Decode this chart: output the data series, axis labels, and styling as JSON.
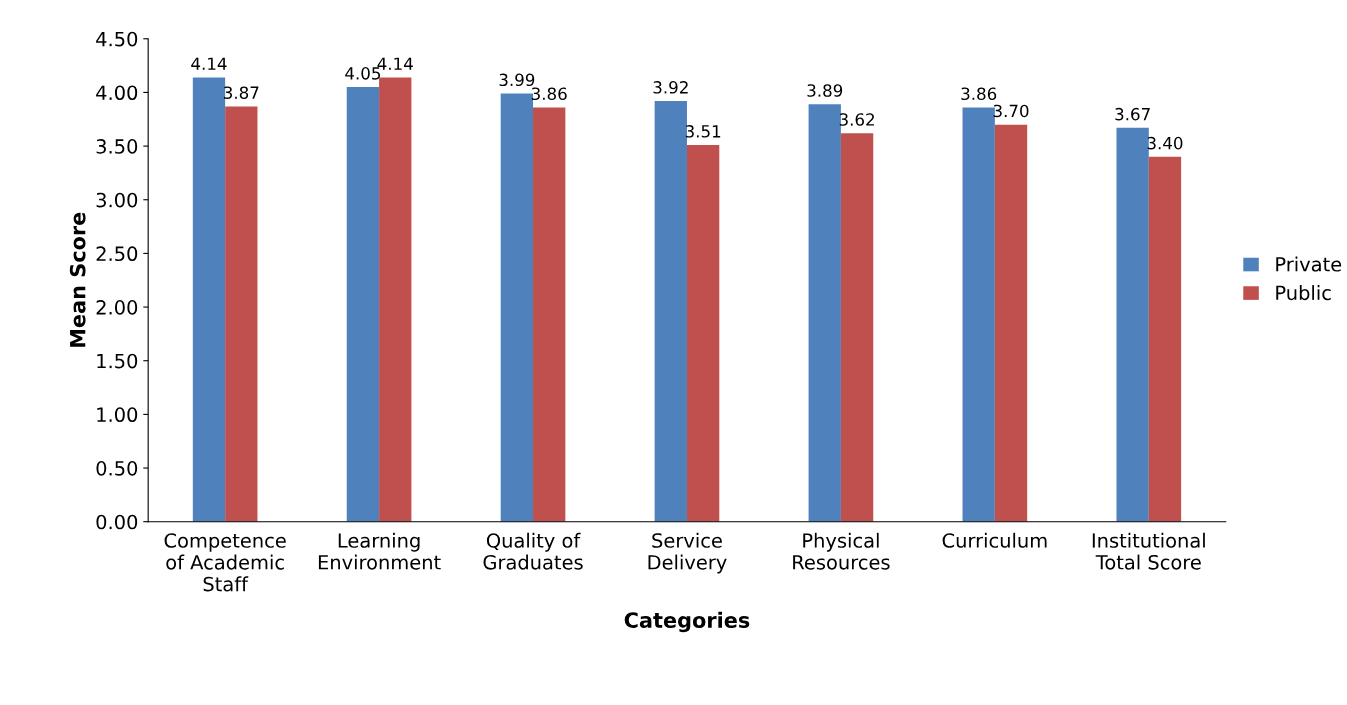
{
  "chart_data": {
    "type": "bar",
    "xlabel": "Categories",
    "ylabel": "Mean Score",
    "categories": [
      "Competence\nof Academic\nStaff",
      "Learning\nEnvironment",
      "Quality of\nGraduates",
      "Service\nDelivery",
      "Physical\nResources",
      "Curriculum",
      "Institutional\nTotal Score"
    ],
    "series": [
      {
        "name": "Private",
        "color": "#4f81bd",
        "values": [
          4.14,
          4.05,
          3.99,
          3.92,
          3.89,
          3.86,
          3.67
        ],
        "value_labels": [
          "4.14",
          "4.05",
          "3.99",
          "3.92",
          "3.89",
          "3.86",
          "3.67"
        ]
      },
      {
        "name": "Public",
        "color": "#c0504d",
        "values": [
          3.87,
          4.14,
          3.86,
          3.51,
          3.62,
          3.7,
          3.4
        ],
        "value_labels": [
          "3.87",
          "4.14",
          "3.86",
          "3.51",
          "3.62",
          "3.70",
          "3.40"
        ]
      }
    ],
    "ylim": [
      0,
      4.5
    ],
    "yticks": [
      {
        "value": 0,
        "label": "0.00"
      },
      {
        "value": 0.5,
        "label": "0.50"
      },
      {
        "value": 1,
        "label": "1.00"
      },
      {
        "value": 1.5,
        "label": "1.50"
      },
      {
        "value": 2,
        "label": "2.00"
      },
      {
        "value": 2.5,
        "label": "2.50"
      },
      {
        "value": 3,
        "label": "3.00"
      },
      {
        "value": 3.5,
        "label": "3.50"
      },
      {
        "value": 4,
        "label": "4.00"
      },
      {
        "value": 4.5,
        "label": "4.50"
      }
    ],
    "grid": false,
    "legend": "right"
  }
}
